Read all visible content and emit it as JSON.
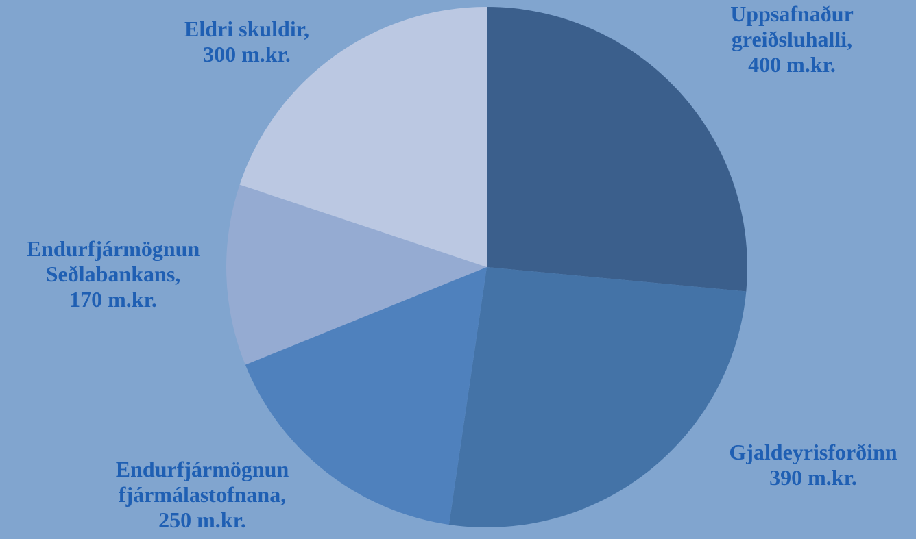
{
  "chart_data": {
    "type": "pie",
    "title": "",
    "unit": "m.kr.",
    "slices": [
      {
        "lines": [
          "Uppsafnaður",
          "greiðsluhalli,",
          "400 m.kr."
        ],
        "value": 400,
        "color": "#3b5f8c"
      },
      {
        "lines": [
          "Gjaldeyrisforðinn",
          "390 m.kr."
        ],
        "value": 390,
        "color": "#4473a7"
      },
      {
        "lines": [
          "Endurfjármögnun",
          "fjármálastofnana,",
          "250 m.kr."
        ],
        "value": 250,
        "color": "#4f81bd"
      },
      {
        "lines": [
          "Endurfjármögnun",
          "Seðlabankans,",
          "170 m.kr."
        ],
        "value": 170,
        "color": "#95abd2"
      },
      {
        "lines": [
          "Eldri skuldir,",
          "300 m.kr."
        ],
        "value": 300,
        "color": "#bbc8e2"
      }
    ],
    "start_angle": "12 o'clock",
    "direction": "clockwise",
    "legend": "none"
  }
}
